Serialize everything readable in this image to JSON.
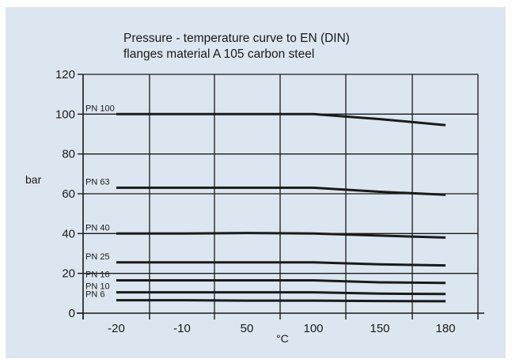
{
  "chart_data": {
    "type": "line",
    "title": "Pressure - temperature curve to EN (DIN)",
    "subtitle": "flanges material A 105 carbon steel",
    "xlabel": "°C",
    "ylabel": "bar",
    "x_tick_labels": [
      "-20",
      "-10",
      "50",
      "100",
      "150",
      "180"
    ],
    "y_ticks": [
      0,
      20,
      40,
      60,
      80,
      100,
      120
    ],
    "ylim": [
      0,
      120
    ],
    "grid": true,
    "x_category_note": "categorical x axis with equally spaced ticks",
    "series": [
      {
        "name": "PN 100",
        "x": [
          "-20",
          "-10",
          "50",
          "100",
          "150",
          "180"
        ],
        "values": [
          100,
          100,
          100,
          100,
          97.5,
          94.5
        ]
      },
      {
        "name": "PN 63",
        "x": [
          "-20",
          "-10",
          "50",
          "100",
          "150",
          "180"
        ],
        "values": [
          63,
          63,
          63,
          63,
          61,
          59.5
        ]
      },
      {
        "name": "PN 40",
        "x": [
          "-20",
          "-10",
          "50",
          "100",
          "150",
          "180"
        ],
        "values": [
          40,
          40,
          40.3,
          40,
          39,
          38
        ]
      },
      {
        "name": "PN 25",
        "x": [
          "-20",
          "-10",
          "50",
          "100",
          "150",
          "180"
        ],
        "values": [
          25.5,
          25.5,
          25.5,
          25.5,
          24.5,
          24
        ]
      },
      {
        "name": "PN 16",
        "x": [
          "-20",
          "-10",
          "50",
          "100",
          "150",
          "180"
        ],
        "values": [
          16.5,
          16.5,
          16.5,
          16.5,
          15.5,
          15.2
        ]
      },
      {
        "name": "PN 10",
        "x": [
          "-20",
          "-10",
          "50",
          "100",
          "150",
          "180"
        ],
        "values": [
          10.5,
          10.5,
          10.5,
          10.5,
          9.8,
          9.6
        ]
      },
      {
        "name": "PN 6",
        "x": [
          "-20",
          "-10",
          "50",
          "100",
          "150",
          "180"
        ],
        "values": [
          6.5,
          6.5,
          6.3,
          6.3,
          6.1,
          6
        ]
      }
    ],
    "colors": {
      "background": "#dce6f0",
      "line": "#1a1a1a",
      "grid": "#1a1a1a"
    }
  }
}
